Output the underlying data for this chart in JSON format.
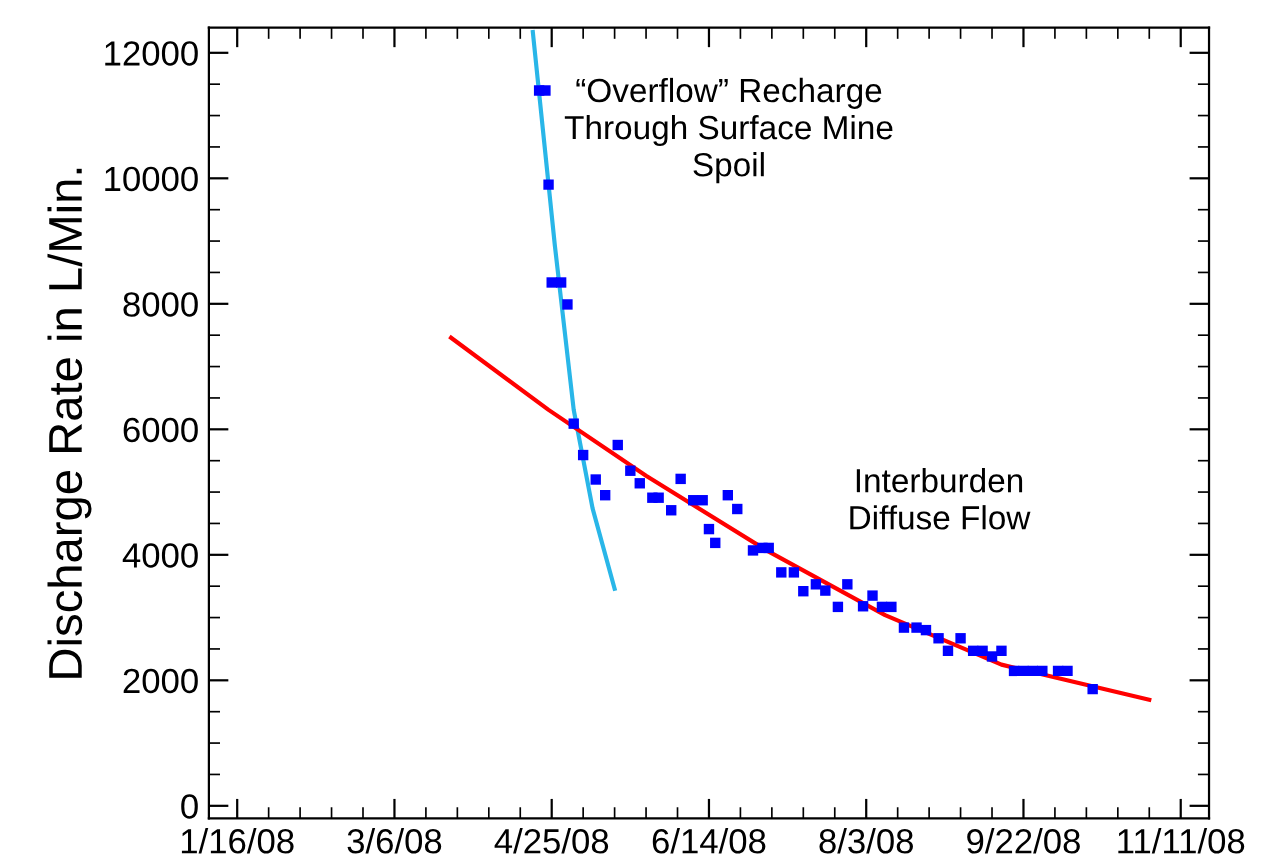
{
  "chart_data": {
    "type": "scatter",
    "ylabel": "Discharge Rate in L/Min.",
    "annotations": [
      "“Overflow” Recharge\nThrough Surface Mine\nSpoil",
      "Interburden\nDiffuse Flow"
    ],
    "series": [
      {
        "color": "#0000ff",
        "marker": "square",
        "x": [
          "2008-04-21",
          "2008-04-23",
          "2008-04-24",
          "2008-04-25",
          "2008-04-28",
          "2008-04-30",
          "2008-05-02",
          "2008-05-05",
          "2008-05-09",
          "2008-05-12",
          "2008-05-16",
          "2008-05-20",
          "2008-05-23",
          "2008-05-27",
          "2008-05-29",
          "2008-06-02",
          "2008-06-05",
          "2008-06-09",
          "2008-06-12",
          "2008-06-14",
          "2008-06-16",
          "2008-06-20",
          "2008-06-23",
          "2008-06-28",
          "2008-07-01",
          "2008-07-03",
          "2008-07-07",
          "2008-07-11",
          "2008-07-14",
          "2008-07-18",
          "2008-07-21",
          "2008-07-25",
          "2008-07-28",
          "2008-08-02",
          "2008-08-05",
          "2008-08-08",
          "2008-08-11",
          "2008-08-15",
          "2008-08-19",
          "2008-08-22",
          "2008-08-26",
          "2008-08-29",
          "2008-09-02",
          "2008-09-06",
          "2008-09-09",
          "2008-09-12",
          "2008-09-15",
          "2008-09-19",
          "2008-09-22",
          "2008-09-25",
          "2008-09-28",
          "2008-10-03",
          "2008-10-06",
          "2008-10-14"
        ],
        "values": [
          11400,
          11400,
          9900,
          8340,
          8340,
          7990,
          6090,
          5590,
          5200,
          4950,
          5750,
          5340,
          5140,
          4910,
          4910,
          4710,
          5210,
          4870,
          4870,
          4410,
          4190,
          4950,
          4730,
          4070,
          4110,
          4110,
          3720,
          3720,
          3420,
          3530,
          3430,
          3170,
          3530,
          3180,
          3350,
          3170,
          3170,
          2840,
          2840,
          2800,
          2670,
          2470,
          2670,
          2470,
          2470,
          2380,
          2470,
          2150,
          2150,
          2150,
          2150,
          2150,
          2150,
          1860
        ]
      },
      {
        "type": "line",
        "color": "#29b6e8",
        "marker": "none",
        "line_style": "solid",
        "x": [
          "2008-04-19",
          "2008-04-26",
          "2008-05-02",
          "2008-05-08",
          "2008-05-15"
        ],
        "values": [
          12330,
          8930,
          6310,
          4740,
          3460
        ]
      },
      {
        "type": "line",
        "color": "#ff0000",
        "marker": "none",
        "line_style": "solid",
        "x": [
          "2008-03-24",
          "2008-04-24",
          "2008-05-25",
          "2008-07-02",
          "2008-08-09",
          "2008-09-15",
          "2008-11-01"
        ],
        "values": [
          7460,
          6310,
          5260,
          4080,
          3040,
          2250,
          1690
        ]
      }
    ],
    "xlim": [
      "2008-01-07",
      "2008-11-20"
    ],
    "xticks": [
      {
        "value": "2008-01-16",
        "label": "1/16/08"
      },
      {
        "value": "2008-03-06",
        "label": "3/6/08"
      },
      {
        "value": "2008-04-25",
        "label": "4/25/08"
      },
      {
        "value": "2008-06-14",
        "label": "6/14/08"
      },
      {
        "value": "2008-08-03",
        "label": "8/3/08"
      },
      {
        "value": "2008-09-22",
        "label": "9/22/08"
      },
      {
        "value": "2008-11-11",
        "label": "11/11/08"
      }
    ],
    "ylim": [
      -200,
      12400
    ],
    "yticks": [
      0,
      2000,
      4000,
      6000,
      8000,
      10000,
      12000
    ],
    "grid": false,
    "legend": false
  }
}
